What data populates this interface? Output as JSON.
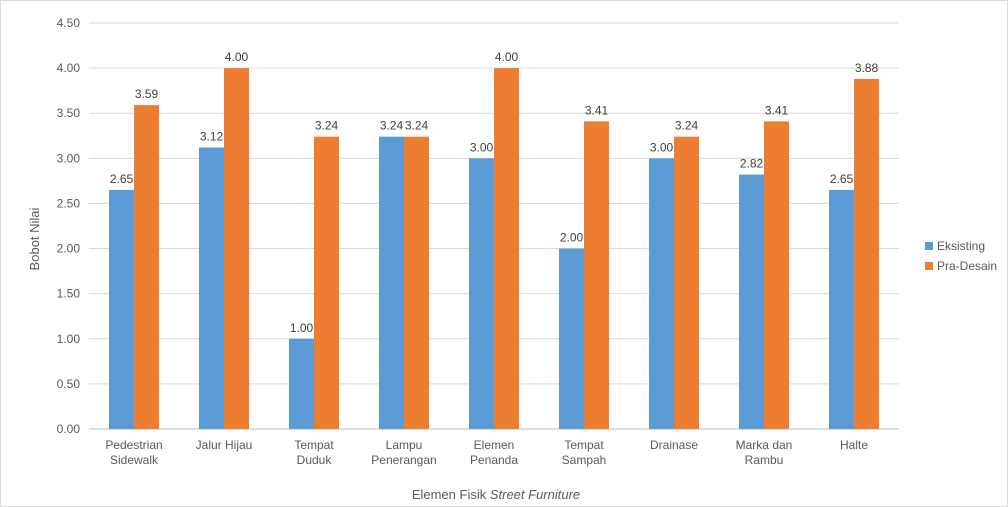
{
  "chart_data": {
    "type": "bar",
    "title": "",
    "xlabel_prefix": "Elemen Fisik ",
    "xlabel_italic": "Street Furniture",
    "ylabel": "Bobot Nilai",
    "ylim": [
      0,
      4.5
    ],
    "yticks": [
      "0.00",
      "0.50",
      "1.00",
      "1.50",
      "2.00",
      "2.50",
      "3.00",
      "3.50",
      "4.00",
      "4.50"
    ],
    "grid": true,
    "legend_position": "right",
    "categories": [
      [
        "Pedestrian",
        "Sidewalk"
      ],
      [
        "Jalur Hijau"
      ],
      [
        "Tempat",
        "Duduk"
      ],
      [
        "Lampu",
        "Penerangan"
      ],
      [
        "Elemen",
        "Penanda"
      ],
      [
        "Tempat",
        "Sampah"
      ],
      [
        "Drainase"
      ],
      [
        "Marka dan",
        "Rambu"
      ],
      [
        "Halte"
      ]
    ],
    "series": [
      {
        "name": "Eksisting",
        "color": "#5b9bd5",
        "values": [
          2.65,
          3.12,
          1.0,
          3.24,
          3.0,
          2.0,
          3.0,
          2.82,
          2.65
        ]
      },
      {
        "name": "Pra-Desain",
        "color": "#ed7d31",
        "values": [
          3.59,
          4.0,
          3.24,
          3.24,
          4.0,
          3.41,
          3.24,
          3.41,
          3.88
        ]
      }
    ]
  }
}
